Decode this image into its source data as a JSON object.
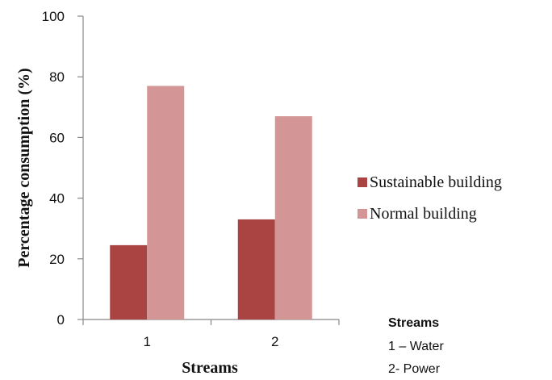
{
  "chart_data": {
    "type": "bar",
    "categories": [
      "1",
      "2"
    ],
    "series": [
      {
        "name": "Sustainable building",
        "values": [
          24.5,
          33
        ],
        "color": "#a94442"
      },
      {
        "name": "Normal building",
        "values": [
          77,
          67
        ],
        "color": "#d39595"
      }
    ],
    "xlabel": "Streams",
    "ylabel": "Percentage consumption (%)",
    "ylim": [
      0,
      100
    ],
    "yticks": [
      "0",
      "20",
      "40",
      "60",
      "80",
      "100"
    ],
    "grid": false,
    "legend_position": "right"
  },
  "notes": {
    "title": "Streams",
    "lines": [
      "1 – Water",
      "2- Power"
    ]
  }
}
